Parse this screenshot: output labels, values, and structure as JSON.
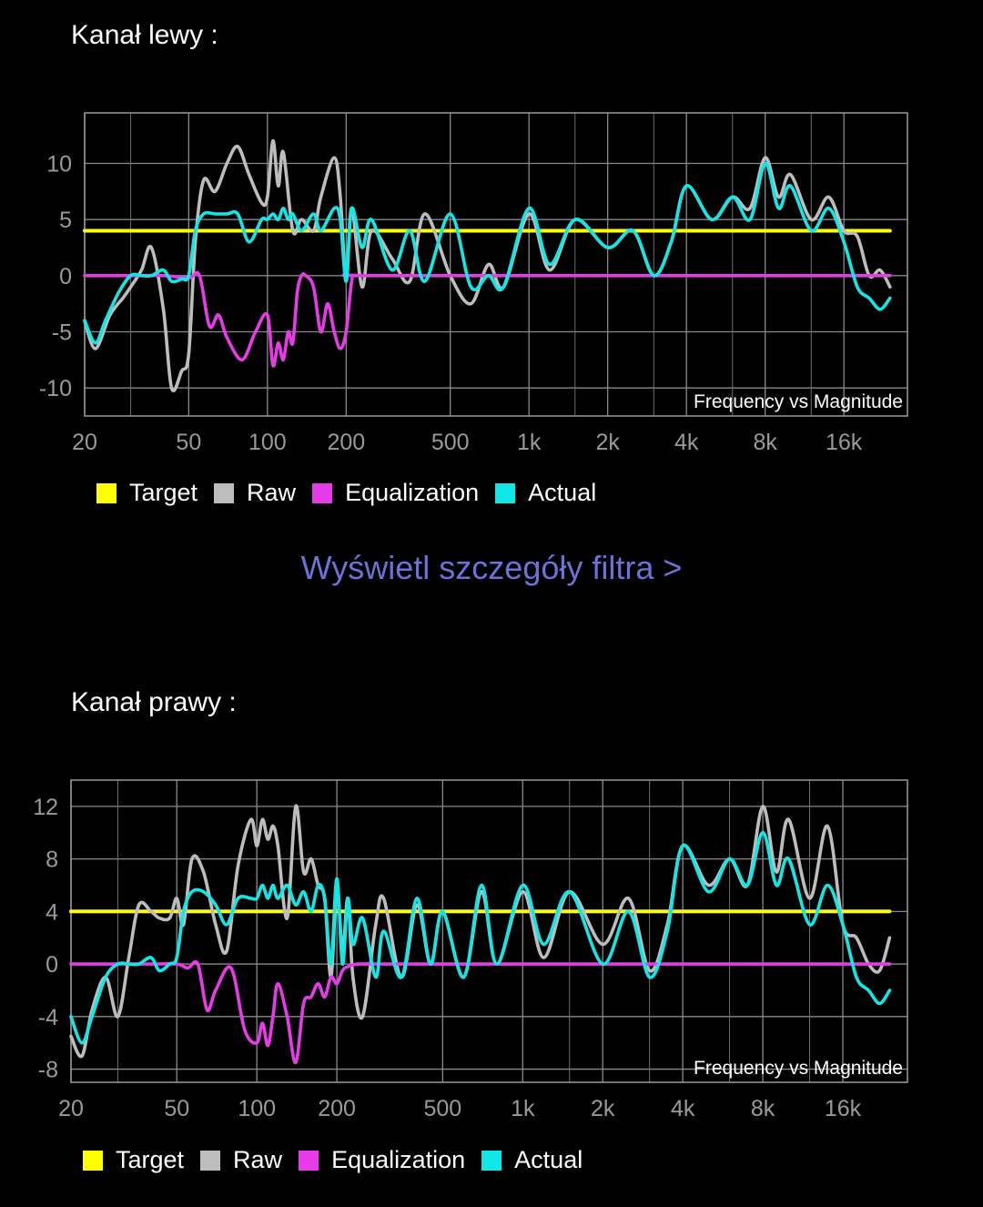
{
  "link_text": "Wyświetl szczegóły filtra >",
  "colors": {
    "target": "#FFFF00",
    "raw": "#BDBDBD",
    "equalization": "#E83BE8",
    "actual": "#10E8E8",
    "grid": "#9A9A9A",
    "link": "#6E72D8"
  },
  "chart_data": [
    {
      "title": "Kanał lewy  :",
      "type": "line",
      "annotation": "Frequency vs Magnitude",
      "x_scale": "log",
      "xlim": [
        20,
        28000
      ],
      "ylim": [
        -12.5,
        14.5
      ],
      "x_ticks": [
        20,
        50,
        100,
        200,
        500,
        1000,
        2000,
        4000,
        8000,
        16000
      ],
      "x_tick_labels": [
        "20",
        "50",
        "100",
        "200",
        "500",
        "1k",
        "2k",
        "4k",
        "8k",
        "16k"
      ],
      "y_ticks": [
        10,
        5,
        0,
        -5,
        -10
      ],
      "y_tick_labels": [
        "10",
        "5",
        "0",
        "-5",
        "-10"
      ],
      "grid": true,
      "legend_position": "bottom",
      "series": [
        {
          "name": "Target",
          "color": "#FFFF00",
          "x": [
            20,
            24000
          ],
          "y": [
            4,
            4
          ]
        },
        {
          "name": "Raw",
          "color": "#BDBDBD",
          "x": [
            20,
            22,
            25,
            28,
            30,
            33,
            36,
            40,
            43,
            47,
            50,
            53,
            57,
            63,
            70,
            77,
            85,
            95,
            100,
            105,
            110,
            115,
            125,
            135,
            150,
            160,
            180,
            190,
            200,
            210,
            230,
            250,
            300,
            350,
            400,
            500,
            600,
            700,
            800,
            1000,
            1200,
            1500,
            2000,
            2500,
            3000,
            3500,
            4000,
            5000,
            6000,
            7000,
            8000,
            9000,
            10000,
            12000,
            14000,
            16000,
            18000,
            20000,
            22000,
            24000
          ],
          "y": [
            -4,
            -6.5,
            -3.5,
            -2,
            -1,
            0.5,
            2.5,
            -3,
            -10,
            -8.5,
            -7,
            3,
            8.5,
            7.5,
            10,
            11.5,
            9,
            6.5,
            7,
            12,
            8,
            11,
            4,
            5,
            4,
            7,
            10.5,
            7,
            -0.5,
            6,
            -1,
            4,
            1.5,
            -0.5,
            5.5,
            0,
            -2.5,
            1,
            -1,
            5.5,
            0.5,
            5,
            2.5,
            4,
            0,
            3,
            8,
            5,
            7,
            6,
            10.5,
            7,
            9,
            5,
            7,
            4,
            3.5,
            0,
            0.5,
            -1
          ]
        },
        {
          "name": "Equalization",
          "color": "#E83BE8",
          "x": [
            20,
            30,
            40,
            50,
            55,
            60,
            65,
            70,
            80,
            90,
            100,
            105,
            110,
            115,
            120,
            125,
            130,
            135,
            140,
            150,
            160,
            170,
            180,
            190,
            200,
            210,
            220,
            300,
            24000
          ],
          "y": [
            0,
            0,
            0,
            -0.2,
            0,
            -4.5,
            -3.5,
            -5.5,
            -7.5,
            -5,
            -3.5,
            -8,
            -6,
            -7.5,
            -5,
            -6,
            -1.5,
            0,
            0,
            -1,
            -5,
            -2.5,
            -5,
            -6.5,
            -5,
            -0.5,
            0,
            0,
            0
          ]
        },
        {
          "name": "Actual",
          "color": "#10E8E8",
          "x": [
            20,
            22,
            24,
            27,
            30,
            33,
            36,
            40,
            43,
            47,
            50,
            53,
            57,
            63,
            70,
            77,
            85,
            95,
            100,
            105,
            110,
            115,
            120,
            125,
            135,
            150,
            160,
            180,
            190,
            200,
            210,
            230,
            250,
            300,
            350,
            400,
            500,
            600,
            700,
            800,
            1000,
            1200,
            1500,
            2000,
            2500,
            3000,
            3500,
            4000,
            5000,
            6000,
            7000,
            8000,
            9000,
            10000,
            12000,
            14000,
            16000,
            18000,
            20000,
            22000,
            24000
          ],
          "y": [
            -4,
            -6,
            -4,
            -1.5,
            0,
            0,
            0,
            0.5,
            -0.5,
            -0.3,
            0,
            4,
            5.5,
            5.5,
            5.5,
            5.5,
            3,
            5,
            5,
            5.5,
            5,
            6,
            5,
            5.5,
            4,
            5.5,
            4,
            6,
            5,
            -0.5,
            6,
            2.5,
            5,
            0.5,
            4,
            -0.5,
            5.5,
            -1,
            0,
            -1,
            6,
            1,
            5,
            2.5,
            4,
            0,
            3,
            8,
            5,
            7,
            5,
            10,
            6,
            8,
            4,
            6,
            3,
            -1,
            -2,
            -3,
            -2
          ]
        }
      ]
    },
    {
      "title": "Kanał prawy  :",
      "type": "line",
      "annotation": "Frequency vs Magnitude",
      "x_scale": "log",
      "xlim": [
        20,
        28000
      ],
      "ylim": [
        -9,
        14
      ],
      "x_ticks": [
        20,
        50,
        100,
        200,
        500,
        1000,
        2000,
        4000,
        8000,
        16000
      ],
      "x_tick_labels": [
        "20",
        "50",
        "100",
        "200",
        "500",
        "1k",
        "2k",
        "4k",
        "8k",
        "16k"
      ],
      "y_ticks": [
        12,
        8,
        4,
        0,
        -4,
        -8
      ],
      "y_tick_labels": [
        "12",
        "8",
        "4",
        "0",
        "-4",
        "-8"
      ],
      "grid": true,
      "legend_position": "bottom",
      "series": [
        {
          "name": "Target",
          "color": "#FFFF00",
          "x": [
            20,
            24000
          ],
          "y": [
            4,
            4
          ]
        },
        {
          "name": "Raw",
          "color": "#BDBDBD",
          "x": [
            20,
            22,
            24,
            27,
            30,
            33,
            36,
            40,
            43,
            47,
            50,
            53,
            57,
            63,
            70,
            77,
            85,
            95,
            100,
            105,
            110,
            115,
            120,
            130,
            140,
            150,
            160,
            170,
            180,
            190,
            200,
            210,
            220,
            230,
            250,
            280,
            300,
            350,
            400,
            450,
            500,
            600,
            700,
            800,
            1000,
            1200,
            1500,
            2000,
            2500,
            3000,
            3500,
            4000,
            5000,
            6000,
            7000,
            8000,
            9000,
            10000,
            12000,
            14000,
            16000,
            18000,
            20000,
            22000,
            24000
          ],
          "y": [
            -5.5,
            -7,
            -3.5,
            -1,
            -4,
            0.5,
            4.5,
            4,
            3.5,
            3.5,
            5,
            3,
            8,
            7,
            3,
            1,
            7.5,
            11,
            9,
            11,
            9.5,
            10.5,
            9,
            3.5,
            12,
            7,
            8,
            6,
            5,
            -1,
            6,
            1,
            5,
            -1,
            -4,
            3,
            5,
            -1,
            4.5,
            0,
            4,
            -1,
            5.5,
            0,
            5.5,
            0.5,
            5.5,
            1.5,
            5,
            -0.5,
            3,
            9,
            6,
            8,
            6,
            12,
            7,
            11,
            5,
            10.5,
            3,
            2,
            0,
            -0.5,
            2
          ]
        },
        {
          "name": "Equalization",
          "color": "#E83BE8",
          "x": [
            20,
            30,
            40,
            50,
            55,
            60,
            65,
            70,
            80,
            90,
            100,
            105,
            110,
            115,
            120,
            130,
            140,
            150,
            160,
            170,
            180,
            190,
            200,
            210,
            220,
            240,
            300,
            350,
            24000
          ],
          "y": [
            0,
            0,
            0,
            0,
            -0.3,
            0,
            -3.5,
            -2,
            -0.3,
            -5,
            -6,
            -4.5,
            -6.2,
            -4,
            -1.5,
            -4,
            -7.5,
            -3,
            -2.5,
            -1.5,
            -2.5,
            -1,
            -1.5,
            -0.5,
            -0.2,
            0,
            0,
            0,
            0
          ]
        },
        {
          "name": "Actual",
          "color": "#10E8E8",
          "x": [
            20,
            22,
            24,
            27,
            30,
            33,
            36,
            40,
            43,
            47,
            50,
            53,
            57,
            63,
            70,
            77,
            85,
            95,
            100,
            105,
            110,
            115,
            120,
            130,
            140,
            150,
            160,
            170,
            180,
            190,
            200,
            210,
            220,
            230,
            250,
            280,
            300,
            350,
            400,
            450,
            500,
            600,
            700,
            800,
            1000,
            1200,
            1500,
            2000,
            2500,
            3000,
            3500,
            4000,
            5000,
            6000,
            7000,
            8000,
            9000,
            10000,
            12000,
            14000,
            16000,
            18000,
            20000,
            22000,
            24000
          ],
          "y": [
            -4,
            -6,
            -4,
            -1,
            0,
            0,
            0,
            0.5,
            -0.5,
            0,
            0.5,
            4,
            5.5,
            5.5,
            4.5,
            3,
            5,
            5,
            5,
            6,
            5,
            6,
            5,
            6,
            4.5,
            5.5,
            4,
            6,
            5,
            0,
            6.5,
            0,
            5,
            1.5,
            3.5,
            -1,
            2.5,
            -1,
            5,
            0,
            4,
            -1,
            6,
            0,
            6,
            1.5,
            5.5,
            0,
            4,
            -1,
            2.5,
            9,
            5.5,
            8,
            6,
            10,
            6,
            8,
            3,
            6,
            3,
            -1,
            -2,
            -3,
            -2
          ]
        }
      ]
    }
  ]
}
